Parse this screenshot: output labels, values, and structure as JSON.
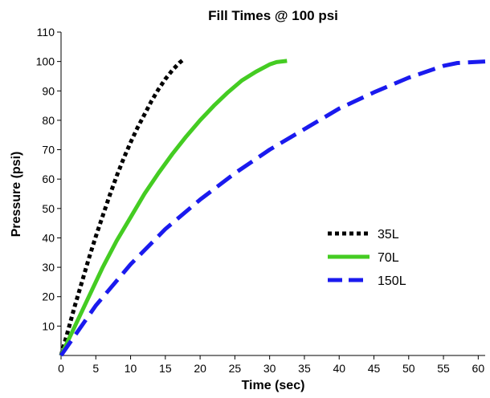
{
  "chart_data": {
    "type": "line",
    "title": "Fill Times @ 100 psi",
    "xlabel": "Time (sec)",
    "ylabel": "Pressure (psi)",
    "xlim": [
      0,
      61
    ],
    "ylim": [
      0,
      110
    ],
    "x_ticks": [
      0,
      5,
      10,
      15,
      20,
      25,
      30,
      35,
      40,
      45,
      50,
      55,
      60
    ],
    "y_ticks": [
      10,
      20,
      30,
      40,
      50,
      60,
      70,
      80,
      90,
      100,
      110
    ],
    "grid": false,
    "legend_position": "center-right",
    "series": [
      {
        "name": "35L",
        "color": "#000000",
        "style": "dotted",
        "x": [
          0,
          1,
          2,
          3,
          4,
          5,
          6,
          7,
          8,
          9,
          10,
          11,
          12,
          13,
          14,
          15,
          16,
          17,
          17.5
        ],
        "y": [
          0,
          8.5,
          17,
          25,
          33,
          40.5,
          47.5,
          54.5,
          61,
          67,
          72.5,
          77.5,
          82,
          86.5,
          90.5,
          94,
          97,
          99.5,
          100.5
        ]
      },
      {
        "name": "70L",
        "color": "#44cc22",
        "style": "solid",
        "x": [
          0,
          2,
          4,
          6,
          8,
          10,
          12,
          14,
          16,
          18,
          20,
          22,
          24,
          26,
          28,
          30,
          31,
          32.5
        ],
        "y": [
          0,
          10,
          20,
          30,
          39,
          47,
          55,
          62,
          68.5,
          74.5,
          80,
          85,
          89.5,
          93.5,
          96.5,
          99,
          99.8,
          100.2
        ]
      },
      {
        "name": "150L",
        "color": "#1a1aee",
        "style": "dashed",
        "x": [
          0,
          5,
          10,
          15,
          20,
          25,
          30,
          35,
          40,
          45,
          50,
          55,
          57,
          61
        ],
        "y": [
          0,
          17,
          31,
          43,
          53,
          62,
          70,
          77,
          84,
          89.5,
          94.5,
          98.5,
          99.5,
          100
        ]
      }
    ]
  }
}
